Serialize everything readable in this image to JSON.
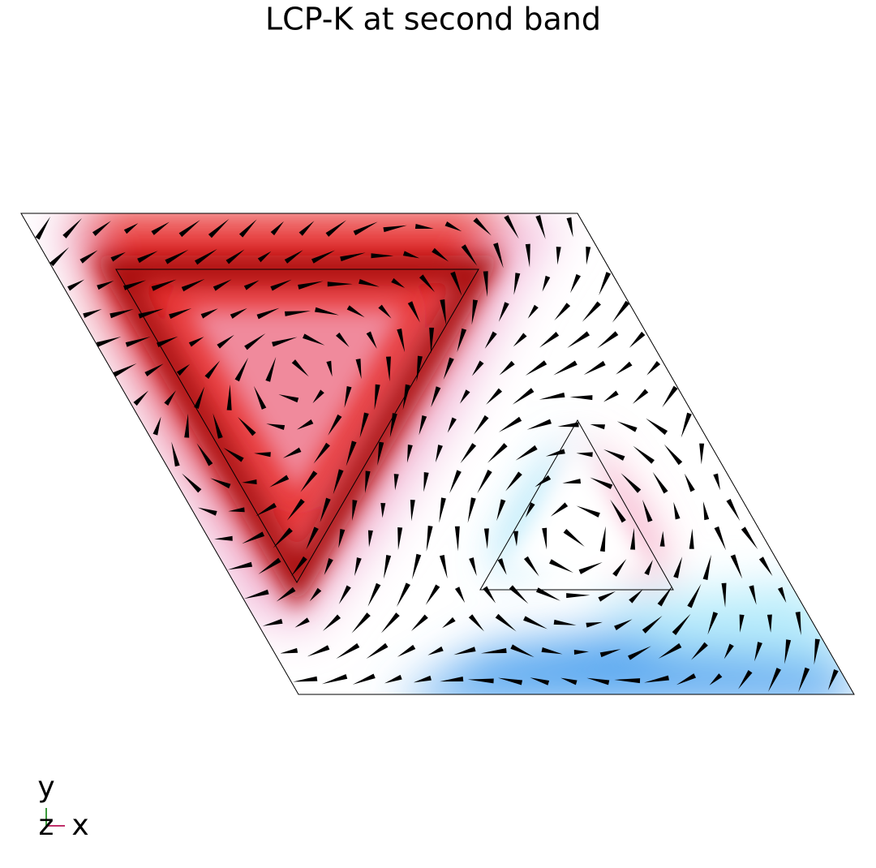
{
  "title": "LCP-K at second band",
  "axes": {
    "y": "y",
    "z": "z",
    "x": "x"
  }
}
